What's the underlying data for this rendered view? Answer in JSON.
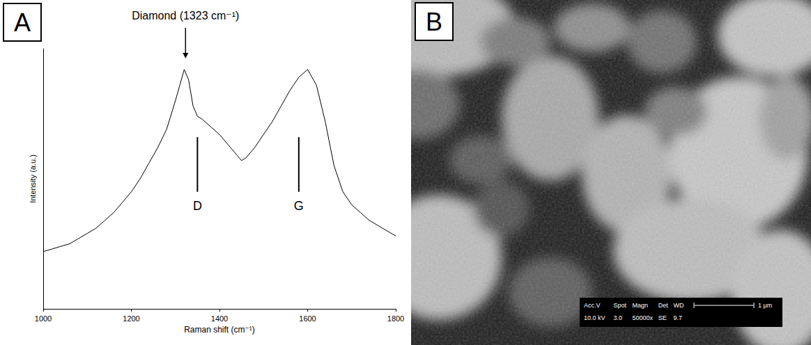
{
  "chart_data": {
    "type": "line",
    "panel_label": "A",
    "color": "#000000",
    "x_label": "Raman shift (cm⁻¹)",
    "y_label": "Intensity (a.u.)",
    "x": [
      1000,
      1020,
      1040,
      1060,
      1080,
      1100,
      1120,
      1140,
      1160,
      1180,
      1200,
      1220,
      1240,
      1260,
      1280,
      1300,
      1310,
      1320,
      1330,
      1340,
      1350,
      1360,
      1380,
      1400,
      1420,
      1440,
      1450,
      1460,
      1480,
      1500,
      1520,
      1540,
      1560,
      1580,
      1600,
      1620,
      1640,
      1660,
      1680,
      1700,
      1720,
      1740,
      1760,
      1780,
      1800
    ],
    "values": [
      22,
      23,
      24,
      25,
      27,
      29,
      31,
      34,
      37,
      41,
      45,
      50,
      56,
      62,
      69,
      80,
      86,
      92,
      88,
      78,
      74,
      73,
      70,
      67,
      63,
      59,
      57,
      58,
      62,
      67,
      72,
      78,
      84,
      89,
      92,
      86,
      72,
      55,
      45,
      40,
      37,
      34,
      32,
      30,
      28
    ],
    "xlim": [
      1000,
      1800
    ],
    "xticks": [
      1000,
      1200,
      1400,
      1600,
      1800
    ],
    "ylim": [
      0,
      100
    ],
    "tick_labels": "x",
    "grid": false,
    "annotations": [
      {
        "text": "Diamond (1323 cm⁻¹)",
        "x": 1323,
        "marker": "arrow"
      },
      {
        "text": "D",
        "x": 1350,
        "marker": "line"
      },
      {
        "text": "G",
        "x": 1580,
        "marker": "line"
      }
    ]
  },
  "image_panel": {
    "panel_label": "B",
    "info_header": [
      "Acc.V",
      "Spot",
      "Magn",
      "Det",
      "WD"
    ],
    "info_values": [
      "10.0 kV",
      "3.0",
      "50000x",
      "SE",
      "9.7"
    ],
    "scale_bar": "1 µm"
  }
}
